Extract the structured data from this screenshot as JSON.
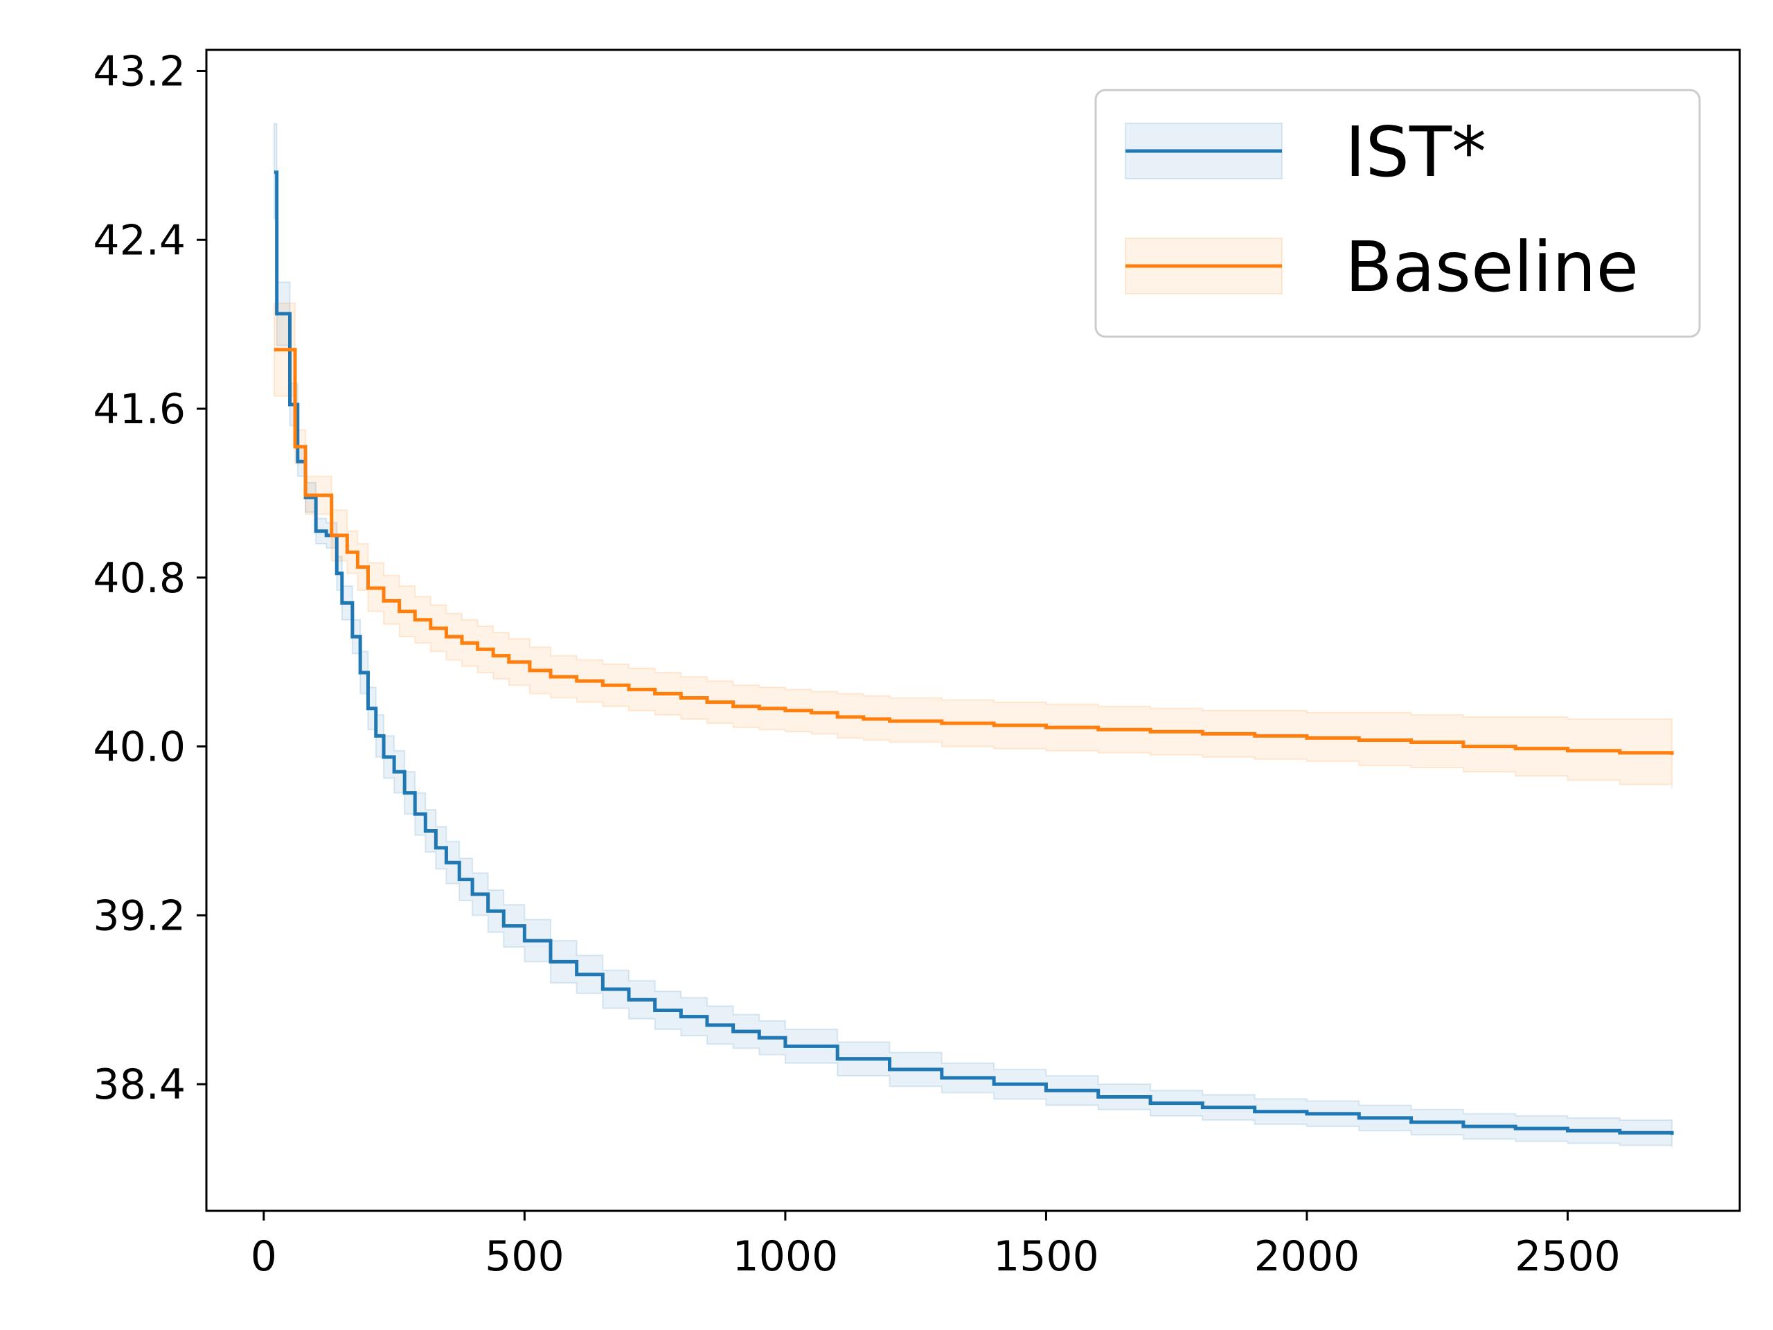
{
  "chart_data": {
    "type": "line",
    "title": "",
    "xlabel": "",
    "ylabel": "",
    "xlim": [
      -110,
      2830
    ],
    "ylim": [
      37.8,
      43.3
    ],
    "xticks": [
      0,
      500,
      1000,
      1500,
      2000,
      2500
    ],
    "yticks": [
      43.2,
      42.4,
      41.6,
      40.8,
      40.0,
      39.2,
      38.4
    ],
    "xtick_labels": [
      "0",
      "500",
      "1000",
      "1500",
      "2000",
      "2500"
    ],
    "ytick_labels": [
      "43.2",
      "42.4",
      "41.6",
      "40.8",
      "40.0",
      "39.2",
      "38.4"
    ],
    "grid": false,
    "legend_position": "top-right",
    "step": true,
    "series": [
      {
        "name": "IST*",
        "color": "#1f77b4",
        "x": [
          20,
          25,
          50,
          65,
          80,
          100,
          120,
          140,
          150,
          170,
          185,
          200,
          215,
          230,
          250,
          270,
          290,
          310,
          330,
          350,
          375,
          400,
          430,
          460,
          500,
          550,
          600,
          650,
          700,
          750,
          800,
          850,
          900,
          950,
          1000,
          1100,
          1200,
          1300,
          1400,
          1500,
          1600,
          1700,
          1800,
          1900,
          2000,
          2100,
          2200,
          2300,
          2400,
          2500,
          2600,
          2700
        ],
        "y": [
          42.72,
          42.05,
          41.62,
          41.35,
          41.18,
          41.02,
          41.0,
          40.82,
          40.68,
          40.52,
          40.35,
          40.18,
          40.05,
          39.95,
          39.88,
          39.78,
          39.68,
          39.6,
          39.52,
          39.45,
          39.37,
          39.3,
          39.22,
          39.15,
          39.08,
          38.98,
          38.92,
          38.85,
          38.8,
          38.75,
          38.72,
          38.68,
          38.65,
          38.62,
          38.58,
          38.52,
          38.47,
          38.43,
          38.4,
          38.37,
          38.34,
          38.31,
          38.29,
          38.27,
          38.26,
          38.24,
          38.22,
          38.2,
          38.19,
          38.18,
          38.17,
          38.16
        ],
        "upper": [
          42.95,
          42.2,
          41.72,
          41.42,
          41.25,
          41.08,
          41.06,
          40.9,
          40.76,
          40.6,
          40.45,
          40.28,
          40.15,
          40.05,
          39.98,
          39.88,
          39.78,
          39.7,
          39.62,
          39.55,
          39.47,
          39.4,
          39.32,
          39.25,
          39.18,
          39.08,
          39.01,
          38.94,
          38.89,
          38.84,
          38.81,
          38.77,
          38.73,
          38.7,
          38.66,
          38.6,
          38.55,
          38.5,
          38.47,
          38.44,
          38.4,
          38.37,
          38.35,
          38.33,
          38.32,
          38.3,
          38.28,
          38.26,
          38.25,
          38.24,
          38.23,
          38.22
        ],
        "lower": [
          42.5,
          41.9,
          41.52,
          41.28,
          41.11,
          40.96,
          40.94,
          40.74,
          40.6,
          40.44,
          40.25,
          40.08,
          39.95,
          39.85,
          39.78,
          39.68,
          39.58,
          39.5,
          39.42,
          39.35,
          39.27,
          39.2,
          39.12,
          39.05,
          38.98,
          38.88,
          38.83,
          38.76,
          38.71,
          38.66,
          38.63,
          38.59,
          38.57,
          38.54,
          38.5,
          38.44,
          38.39,
          38.36,
          38.33,
          38.3,
          38.28,
          38.25,
          38.23,
          38.21,
          38.2,
          38.18,
          38.16,
          38.14,
          38.13,
          38.12,
          38.11,
          38.1
        ]
      },
      {
        "name": "Baseline",
        "color": "#ff7f0e",
        "x": [
          20,
          50,
          60,
          80,
          100,
          130,
          160,
          180,
          200,
          230,
          260,
          290,
          320,
          350,
          380,
          410,
          440,
          470,
          510,
          550,
          600,
          650,
          700,
          750,
          800,
          850,
          900,
          950,
          1000,
          1050,
          1100,
          1150,
          1200,
          1300,
          1400,
          1500,
          1600,
          1700,
          1800,
          1900,
          2000,
          2100,
          2200,
          2300,
          2400,
          2500,
          2600,
          2700
        ],
        "y": [
          41.88,
          41.88,
          41.42,
          41.19,
          41.19,
          41.0,
          40.92,
          40.85,
          40.75,
          40.69,
          40.64,
          40.6,
          40.56,
          40.52,
          40.49,
          40.46,
          40.43,
          40.4,
          40.36,
          40.33,
          40.31,
          40.29,
          40.27,
          40.25,
          40.23,
          40.21,
          40.19,
          40.18,
          40.17,
          40.16,
          40.14,
          40.13,
          40.12,
          40.11,
          40.1,
          40.09,
          40.08,
          40.07,
          40.06,
          40.05,
          40.04,
          40.03,
          40.02,
          40.0,
          39.99,
          39.98,
          39.97,
          39.96
        ],
        "upper": [
          42.1,
          42.1,
          41.5,
          41.28,
          41.28,
          41.12,
          41.02,
          40.96,
          40.87,
          40.81,
          40.76,
          40.71,
          40.67,
          40.63,
          40.6,
          40.57,
          40.54,
          40.51,
          40.47,
          40.43,
          40.41,
          40.39,
          40.37,
          40.35,
          40.33,
          40.31,
          40.29,
          40.28,
          40.27,
          40.26,
          40.25,
          40.24,
          40.23,
          40.22,
          40.21,
          40.2,
          40.19,
          40.18,
          40.17,
          40.17,
          40.16,
          40.16,
          40.15,
          40.14,
          40.14,
          40.13,
          40.13,
          40.12
        ],
        "lower": [
          41.66,
          41.66,
          41.34,
          41.1,
          41.1,
          40.88,
          40.82,
          40.74,
          40.64,
          40.58,
          40.52,
          40.49,
          40.45,
          40.41,
          40.38,
          40.35,
          40.32,
          40.29,
          40.25,
          40.23,
          40.21,
          40.19,
          40.17,
          40.15,
          40.13,
          40.11,
          40.09,
          40.08,
          40.07,
          40.06,
          40.04,
          40.03,
          40.02,
          40.0,
          39.99,
          39.98,
          39.97,
          39.96,
          39.95,
          39.94,
          39.93,
          39.91,
          39.9,
          39.88,
          39.86,
          39.84,
          39.82,
          39.8
        ]
      }
    ]
  }
}
